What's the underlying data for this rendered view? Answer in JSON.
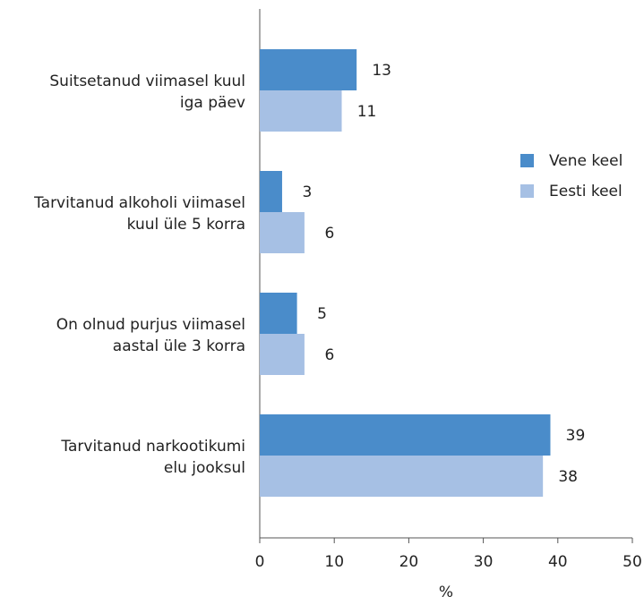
{
  "chart_data": {
    "type": "bar",
    "orientation": "horizontal",
    "categories": [
      [
        "Suitsetanud viimasel kuul",
        "iga päev"
      ],
      [
        "Tarvitanud alkoholi viimasel",
        "kuul üle 5 korra"
      ],
      [
        "On olnud purjus viimasel",
        "aastal üle 3 korra"
      ],
      [
        "Tarvitanud narkootikumi",
        "elu jooksul"
      ]
    ],
    "series": [
      {
        "name": "Vene keel",
        "values": [
          13,
          3,
          5,
          39
        ],
        "labels": [
          "13",
          "3",
          "5",
          "39"
        ],
        "color": "#4a8cca"
      },
      {
        "name": "Eesti keel",
        "values": [
          11,
          6,
          6,
          38
        ],
        "labels": [
          "11",
          "6",
          "6",
          "38"
        ],
        "color": "#a6c0e4"
      }
    ],
    "xlabel": "%",
    "ylabel": "",
    "xlim": [
      0,
      50
    ],
    "xticks": [
      "0",
      "10",
      "20",
      "30",
      "40",
      "50"
    ],
    "legend_position": "right",
    "grid": false
  }
}
